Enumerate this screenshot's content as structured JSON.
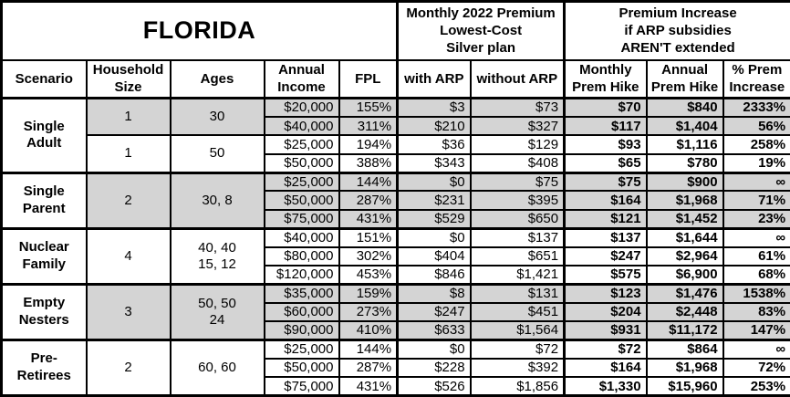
{
  "title": "FLORIDA",
  "header_groups": {
    "premium": "Monthly 2022 Premium\nLowest-Cost\nSilver plan",
    "increase": "Premium Increase\nif ARP subsidies\nAREN'T extended"
  },
  "columns": [
    "Scenario",
    "Household\nSize",
    "Ages",
    "Annual\nIncome",
    "FPL",
    "with ARP",
    "without ARP",
    "Monthly\nPrem Hike",
    "Annual\nPrem Hike",
    "% Prem\nIncrease"
  ],
  "colors": {
    "shaded_row": "#d4d4d4",
    "border": "#000000",
    "background": "#ffffff",
    "text": "#000000"
  },
  "groups": [
    {
      "scenario": "Single\nAdult",
      "subgroups": [
        {
          "household_size": "1",
          "ages": "30",
          "shaded": true,
          "rows": [
            [
              "$20,000",
              "155%",
              "$3",
              "$73",
              "$70",
              "$840",
              "2333%"
            ],
            [
              "$40,000",
              "311%",
              "$210",
              "$327",
              "$117",
              "$1,404",
              "56%"
            ]
          ]
        },
        {
          "household_size": "1",
          "ages": "50",
          "shaded": false,
          "rows": [
            [
              "$25,000",
              "194%",
              "$36",
              "$129",
              "$93",
              "$1,116",
              "258%"
            ],
            [
              "$50,000",
              "388%",
              "$343",
              "$408",
              "$65",
              "$780",
              "19%"
            ]
          ]
        }
      ]
    },
    {
      "scenario": "Single\nParent",
      "subgroups": [
        {
          "household_size": "2",
          "ages": "30, 8",
          "shaded": true,
          "rows": [
            [
              "$25,000",
              "144%",
              "$0",
              "$75",
              "$75",
              "$900",
              "∞"
            ],
            [
              "$50,000",
              "287%",
              "$231",
              "$395",
              "$164",
              "$1,968",
              "71%"
            ],
            [
              "$75,000",
              "431%",
              "$529",
              "$650",
              "$121",
              "$1,452",
              "23%"
            ]
          ]
        }
      ]
    },
    {
      "scenario": "Nuclear\nFamily",
      "subgroups": [
        {
          "household_size": "4",
          "ages": "40, 40\n15, 12",
          "shaded": false,
          "rows": [
            [
              "$40,000",
              "151%",
              "$0",
              "$137",
              "$137",
              "$1,644",
              "∞"
            ],
            [
              "$80,000",
              "302%",
              "$404",
              "$651",
              "$247",
              "$2,964",
              "61%"
            ],
            [
              "$120,000",
              "453%",
              "$846",
              "$1,421",
              "$575",
              "$6,900",
              "68%"
            ]
          ]
        }
      ]
    },
    {
      "scenario": "Empty\nNesters",
      "subgroups": [
        {
          "household_size": "3",
          "ages": "50, 50\n24",
          "shaded": true,
          "rows": [
            [
              "$35,000",
              "159%",
              "$8",
              "$131",
              "$123",
              "$1,476",
              "1538%"
            ],
            [
              "$60,000",
              "273%",
              "$247",
              "$451",
              "$204",
              "$2,448",
              "83%"
            ],
            [
              "$90,000",
              "410%",
              "$633",
              "$1,564",
              "$931",
              "$11,172",
              "147%"
            ]
          ]
        }
      ]
    },
    {
      "scenario": "Pre-\nRetirees",
      "subgroups": [
        {
          "household_size": "2",
          "ages": "60, 60",
          "shaded": false,
          "rows": [
            [
              "$25,000",
              "144%",
              "$0",
              "$72",
              "$72",
              "$864",
              "∞"
            ],
            [
              "$50,000",
              "287%",
              "$228",
              "$392",
              "$164",
              "$1,968",
              "72%"
            ],
            [
              "$75,000",
              "431%",
              "$526",
              "$1,856",
              "$1,330",
              "$15,960",
              "253%"
            ]
          ]
        }
      ]
    }
  ]
}
